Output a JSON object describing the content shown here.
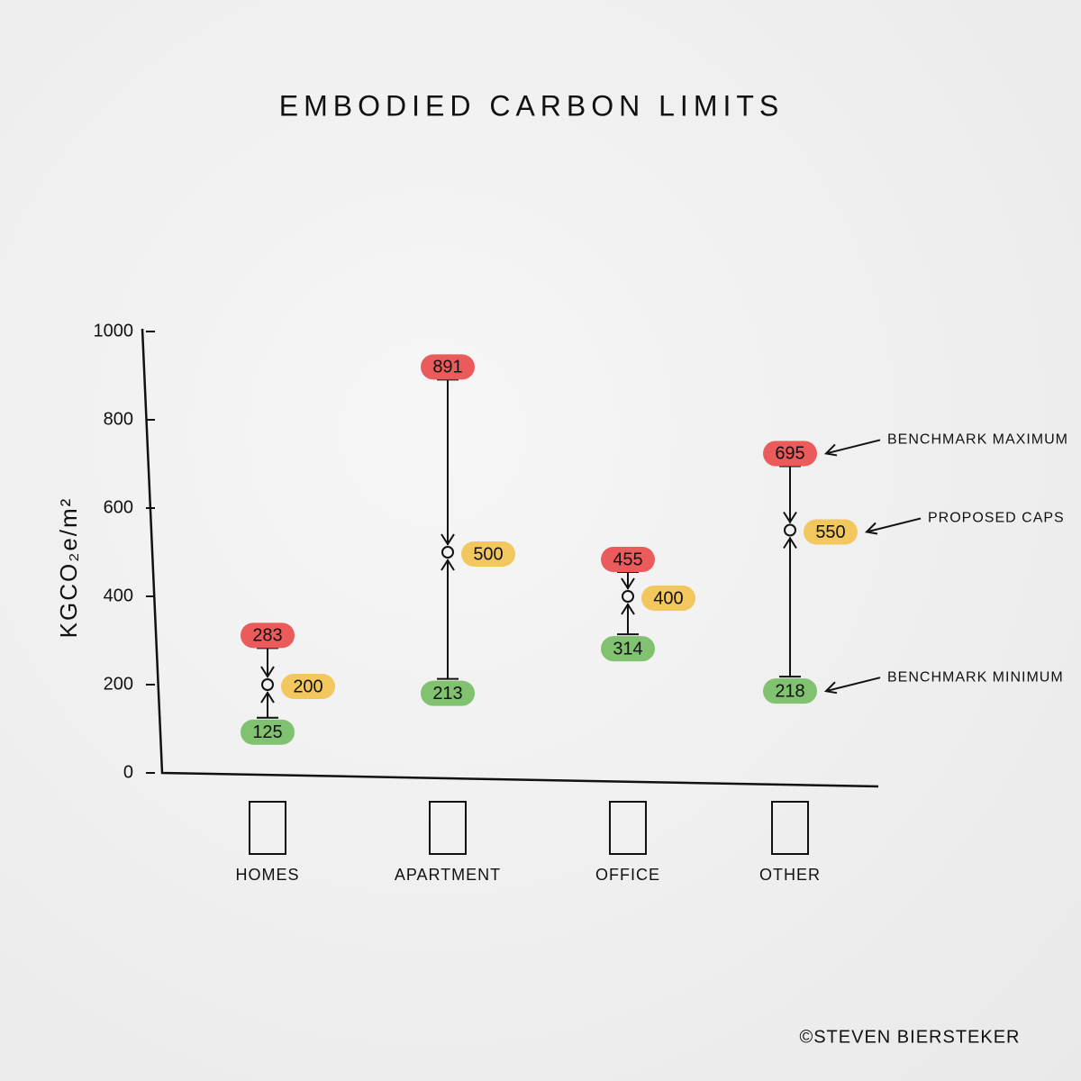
{
  "chart_data": {
    "type": "range",
    "title": "EMBODIED CARBON LIMITS",
    "y_label": "KGCO₂e/m²",
    "categories": [
      "HOMES",
      "APARTMENT",
      "OFFICE",
      "OTHER"
    ],
    "series": [
      {
        "name": "BENCHMARK MAXIMUM",
        "color": "#ec5b5b",
        "values": [
          283,
          891,
          455,
          695
        ]
      },
      {
        "name": "PROPOSED CAPS",
        "color": "#f2c75e",
        "values": [
          200,
          500,
          400,
          550
        ]
      },
      {
        "name": "BENCHMARK MINIMUM",
        "color": "#80c270",
        "values": [
          125,
          213,
          314,
          218
        ]
      }
    ],
    "ylim": [
      0,
      1000
    ],
    "yticks": [
      0,
      200,
      400,
      600,
      800,
      1000
    ],
    "credit": "©STEVEN BIERSTEKER"
  }
}
